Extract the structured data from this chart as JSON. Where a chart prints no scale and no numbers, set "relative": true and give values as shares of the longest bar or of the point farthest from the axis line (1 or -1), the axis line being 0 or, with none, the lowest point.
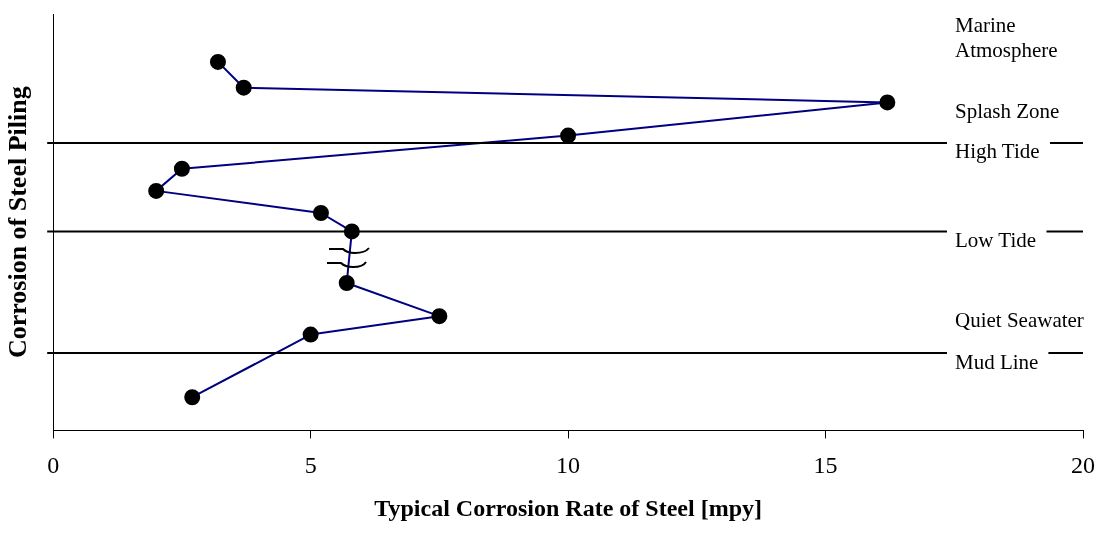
{
  "chart_data": {
    "type": "line",
    "xlabel": "Typical Corrosion Rate of Steel [mpy]",
    "ylabel": "Corrosion of Steel Piling",
    "relative": true,
    "xlim": [
      0,
      20
    ],
    "xticks": [
      0,
      5,
      10,
      15,
      20
    ],
    "tick_labels": "x",
    "grid": false,
    "legend": false,
    "marker": "circle",
    "series": [
      {
        "color": "#000080",
        "x": [
          3.2,
          3.7,
          16.2,
          10.0,
          2.5,
          2.0,
          5.2,
          5.8,
          5.7,
          7.5,
          5.0,
          2.7
        ],
        "values": [
          1.0,
          0.93,
          0.89,
          0.8,
          0.71,
          0.65,
          0.59,
          0.54,
          0.4,
          0.31,
          0.26,
          0.09
        ]
      }
    ],
    "ref_lines": [
      {
        "axis": "y",
        "value": 0.78,
        "label": "High Tide"
      },
      {
        "axis": "y",
        "value": 0.54,
        "label": "Low Tide"
      },
      {
        "axis": "y",
        "value": 0.21,
        "label": "Mud Line"
      }
    ],
    "annotations": [
      "Marine Atmosphere",
      "Splash Zone",
      "Quiet Seawater"
    ]
  }
}
